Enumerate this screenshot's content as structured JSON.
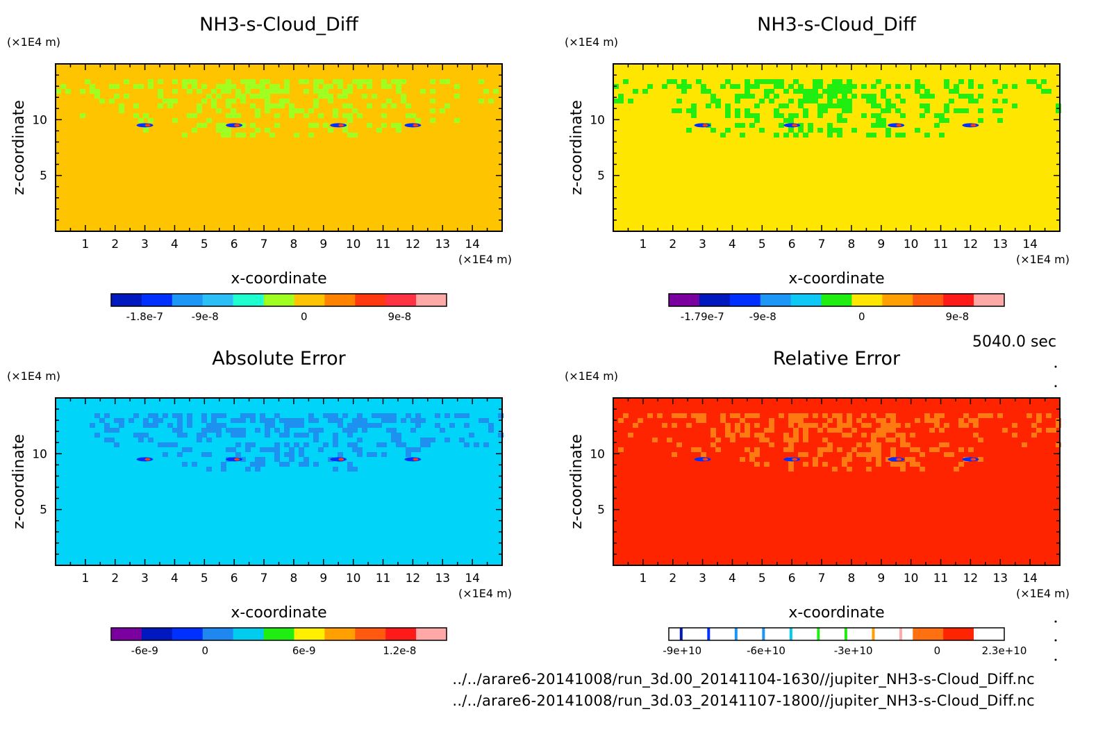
{
  "timestamp": "5040.0 sec",
  "footer": {
    "line1": "../../arare6-20141008/run_3d.00_20141104-1630//jupiter_NH3-s-Cloud_Diff.nc",
    "line2": "../../arare6-20141008/run_3d.03_20141107-1800//jupiter_NH3-s-Cloud_Diff.nc"
  },
  "chart_data": [
    {
      "type": "heatmap",
      "title": "NH3-s-Cloud_Diff",
      "xlabel": "x-coordinate",
      "ylabel": "z-coordinate",
      "x_unit": "(×1E4 m)",
      "y_unit": "(×1E4 m)",
      "xlim": [
        0,
        15
      ],
      "ylim": [
        0,
        15
      ],
      "x_ticks": [
        1,
        2,
        3,
        4,
        5,
        6,
        7,
        8,
        9,
        10,
        11,
        12,
        13,
        14
      ],
      "y_ticks": [
        5,
        10
      ],
      "background_color": "#ffc400",
      "pattern_color": "#a0ff20",
      "colorbar": {
        "colors": [
          "#0019bf",
          "#0030ff",
          "#1e96f5",
          "#2cbff7",
          "#20ffd0",
          "#a0ff20",
          "#ffc400",
          "#ff8200",
          "#ff3a10",
          "#ff3344",
          "#ffa8a8"
        ],
        "tick_labels": [
          "-1.8e-7",
          "-9e-8",
          "0",
          "9e-8"
        ]
      }
    },
    {
      "type": "heatmap",
      "title": "NH3-s-Cloud_Diff",
      "xlabel": "x-coordinate",
      "ylabel": "z-coordinate",
      "x_unit": "(×1E4 m)",
      "y_unit": "(×1E4 m)",
      "xlim": [
        0,
        15
      ],
      "ylim": [
        0,
        15
      ],
      "x_ticks": [
        1,
        2,
        3,
        4,
        5,
        6,
        7,
        8,
        9,
        10,
        11,
        12,
        13,
        14
      ],
      "y_ticks": [
        5,
        10
      ],
      "background_color": "#ffe600",
      "pattern_color": "#20ee10",
      "colorbar": {
        "colors": [
          "#7a00a0",
          "#0019bf",
          "#0030ff",
          "#1e96f5",
          "#10c8f5",
          "#20ee10",
          "#ffe600",
          "#ffa000",
          "#ff5a10",
          "#ff1a1a",
          "#ffa8a8"
        ],
        "tick_labels": [
          "-1.79e-7",
          "-9e-8",
          "0",
          "9e-8"
        ]
      }
    },
    {
      "type": "heatmap",
      "title": "Absolute Error",
      "xlabel": "x-coordinate",
      "ylabel": "z-coordinate",
      "x_unit": "(×1E4 m)",
      "y_unit": "(×1E4 m)",
      "xlim": [
        0,
        15
      ],
      "ylim": [
        0,
        15
      ],
      "x_ticks": [
        1,
        2,
        3,
        4,
        5,
        6,
        7,
        8,
        9,
        10,
        11,
        12,
        13,
        14
      ],
      "y_ticks": [
        5,
        10
      ],
      "background_color": "#00d4f8",
      "pattern_color": "#1e90f0",
      "colorbar": {
        "colors": [
          "#7a00a0",
          "#0019bf",
          "#0030ff",
          "#1e88f0",
          "#00ccf0",
          "#20ee10",
          "#fff000",
          "#ffa000",
          "#ff5a10",
          "#ff1a1a",
          "#ffa8a8"
        ],
        "tick_labels": [
          "-6e-9",
          "0",
          "6e-9",
          "1.2e-8"
        ]
      }
    },
    {
      "type": "heatmap",
      "title": "Relative Error",
      "xlabel": "x-coordinate",
      "ylabel": "z-coordinate",
      "x_unit": "(×1E4 m)",
      "y_unit": "(×1E4 m)",
      "xlim": [
        0,
        15
      ],
      "ylim": [
        0,
        15
      ],
      "x_ticks": [
        1,
        2,
        3,
        4,
        5,
        6,
        7,
        8,
        9,
        10,
        11,
        12,
        13,
        14
      ],
      "y_ticks": [
        5,
        10
      ],
      "background_color": "#ff2400",
      "pattern_color": "#ff7a10",
      "colorbar": {
        "colors": [
          "#ffffff",
          "#ffffff",
          "#ffffff",
          "#ffffff",
          "#ffffff",
          "#ffffff",
          "#ffffff",
          "#ffffff",
          "#ff7010",
          "#ff2400",
          "#ffffff"
        ],
        "stripe_colors": [
          "#0019bf",
          "#0030ff",
          "#1e96f5",
          "#1e96f5",
          "#00ccf0",
          "#20ee10",
          "#20ee10",
          "#ffa000",
          "#ffa8a8"
        ],
        "tick_labels": [
          "-9e+10",
          "-6e+10",
          "-3e+10",
          "0",
          "2.3e+10"
        ]
      }
    }
  ]
}
